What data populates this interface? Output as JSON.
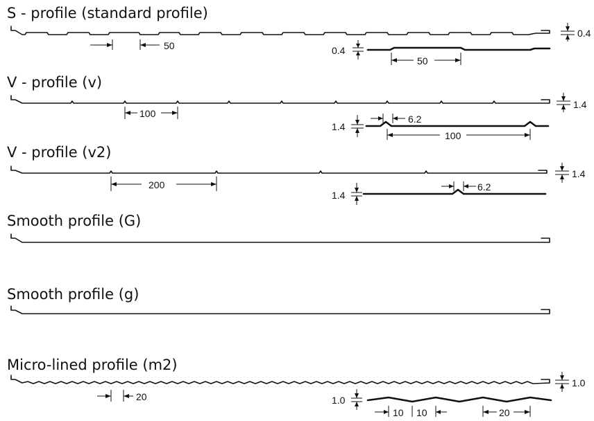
{
  "profiles": [
    {
      "title": "S - profile (standard profile)",
      "dims": {
        "pitch_a": "50",
        "thickness_right": "0.4",
        "thickness_detail": "0.4",
        "pitch_detail": "50"
      }
    },
    {
      "title": "V - profile (v)",
      "dims": {
        "pitch": "100",
        "thickness_right": "1.4",
        "thickness_detail": "1.4",
        "rib_width": "6.2",
        "pitch_detail": "100"
      }
    },
    {
      "title": "V - profile (v2)",
      "dims": {
        "pitch": "200",
        "thickness_right": "1.4",
        "thickness_detail": "1.4",
        "rib_width": "6.2"
      }
    },
    {
      "title": "Smooth profile (G)",
      "dims": {}
    },
    {
      "title": "Smooth profile (g)",
      "dims": {}
    },
    {
      "title": "Micro-lined profile (m2)",
      "dims": {
        "pitch": "20",
        "thickness_right": "1.0",
        "thickness_detail": "1.0",
        "seg_a": "10",
        "seg_b": "10",
        "pitch_detail": "20"
      }
    }
  ],
  "colors": {
    "ink": "#111111",
    "background": "#ffffff"
  }
}
